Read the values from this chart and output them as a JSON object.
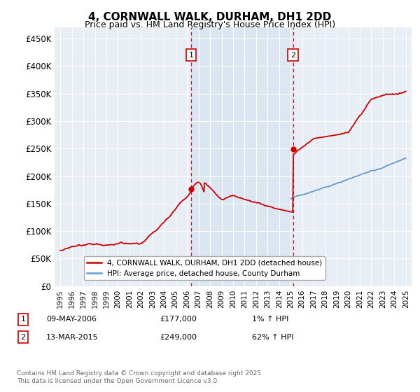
{
  "title": "4, CORNWALL WALK, DURHAM, DH1 2DD",
  "subtitle": "Price paid vs. HM Land Registry's House Price Index (HPI)",
  "ylim": [
    0,
    470000
  ],
  "yticks": [
    0,
    50000,
    100000,
    150000,
    200000,
    250000,
    300000,
    350000,
    400000,
    450000
  ],
  "x_start_year": 1995,
  "x_end_year": 2025,
  "sale1_date": "09-MAY-2006",
  "sale1_price": 177000,
  "sale1_hpi_change": "1%",
  "sale2_date": "13-MAR-2015",
  "sale2_price": 249000,
  "sale2_hpi_change": "62%",
  "sale1_x": 2006.35,
  "sale2_x": 2015.2,
  "legend_line1": "4, CORNWALL WALK, DURHAM, DH1 2DD (detached house)",
  "legend_line2": "HPI: Average price, detached house, County Durham",
  "footnote": "Contains HM Land Registry data © Crown copyright and database right 2025.\nThis data is licensed under the Open Government Licence v3.0.",
  "line1_color": "#cc0000",
  "line2_color": "#6699cc",
  "vline_color": "#cc0000",
  "plot_bg": "#e8eef5",
  "grid_color": "#ffffff",
  "shade_bg": "#d0dff0"
}
